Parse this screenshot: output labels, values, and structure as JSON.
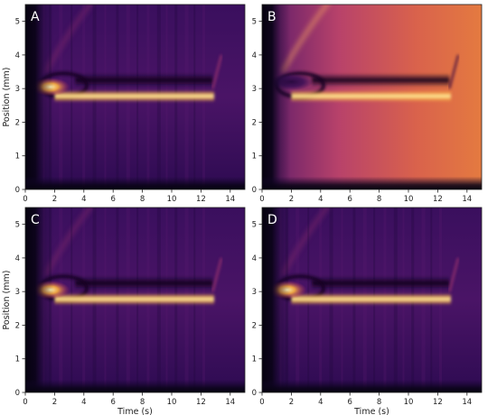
{
  "chart_data": [
    {
      "type": "heatmap",
      "panel_label": "A",
      "variant": "A",
      "xlabel": "",
      "ylabel": "Position (mm)",
      "xlim": [
        0,
        15
      ],
      "ylim": [
        0,
        5.5
      ],
      "xticks": [
        "0",
        "2",
        "4",
        "6",
        "8",
        "10",
        "12",
        "14"
      ],
      "yticks": [
        "0",
        "1",
        "2",
        "3",
        "4",
        "5"
      ],
      "colormap": "inferno"
    },
    {
      "type": "heatmap",
      "panel_label": "B",
      "variant": "B",
      "xlabel": "",
      "ylabel": "",
      "xlim": [
        0,
        15
      ],
      "ylim": [
        0,
        5.5
      ],
      "xticks": [
        "0",
        "2",
        "4",
        "6",
        "8",
        "10",
        "12",
        "14"
      ],
      "yticks": [
        "0",
        "1",
        "2",
        "3",
        "4",
        "5"
      ],
      "colormap": "inferno"
    },
    {
      "type": "heatmap",
      "panel_label": "C",
      "variant": "A",
      "xlabel": "Time (s)",
      "ylabel": "Position (mm)",
      "xlim": [
        0,
        15
      ],
      "ylim": [
        0,
        5.5
      ],
      "xticks": [
        "0",
        "2",
        "4",
        "6",
        "8",
        "10",
        "12",
        "14"
      ],
      "yticks": [
        "0",
        "1",
        "2",
        "3",
        "4",
        "5"
      ],
      "colormap": "inferno"
    },
    {
      "type": "heatmap",
      "panel_label": "D",
      "variant": "A",
      "xlabel": "Time (s)",
      "ylabel": "",
      "xlim": [
        0,
        15
      ],
      "ylim": [
        0,
        5.5
      ],
      "xticks": [
        "0",
        "2",
        "4",
        "6",
        "8",
        "10",
        "12",
        "14"
      ],
      "yticks": [
        "0",
        "1",
        "2",
        "3",
        "4",
        "5"
      ],
      "colormap": "inferno"
    }
  ]
}
